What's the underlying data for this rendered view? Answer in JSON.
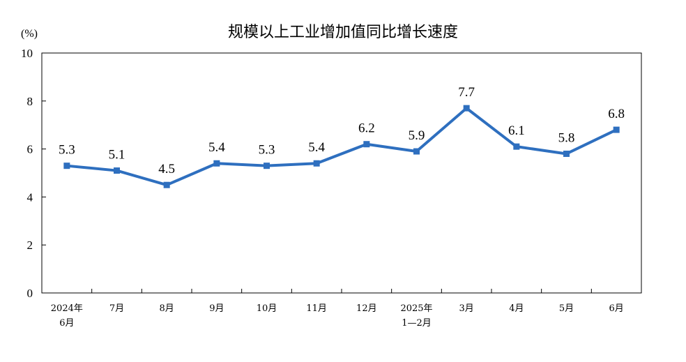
{
  "chart_data": {
    "type": "line",
    "title": "规模以上工业增加值同比增长速度",
    "unit": "(%)",
    "xlabel": "",
    "ylabel": "",
    "ylim": [
      0,
      10
    ],
    "yticks": [
      "0",
      "2",
      "4",
      "6",
      "8",
      "10"
    ],
    "grid": false,
    "legend": "none",
    "categories": [
      [
        "2024年",
        "6月"
      ],
      [
        "7月"
      ],
      [
        "8月"
      ],
      [
        "9月"
      ],
      [
        "10月"
      ],
      [
        "11月"
      ],
      [
        "12月"
      ],
      [
        "2025年",
        "1—2月"
      ],
      [
        "3月"
      ],
      [
        "4月"
      ],
      [
        "5月"
      ],
      [
        "6月"
      ]
    ],
    "series": [
      {
        "values": [
          5.3,
          5.1,
          4.5,
          5.4,
          5.3,
          5.4,
          6.2,
          5.9,
          7.7,
          6.1,
          5.8,
          6.8
        ],
        "labels": [
          "5.3",
          "5.1",
          "4.5",
          "5.4",
          "5.3",
          "5.4",
          "6.2",
          "5.9",
          "7.7",
          "6.1",
          "5.8",
          "6.8"
        ],
        "color": "#2e6fbf"
      }
    ]
  }
}
